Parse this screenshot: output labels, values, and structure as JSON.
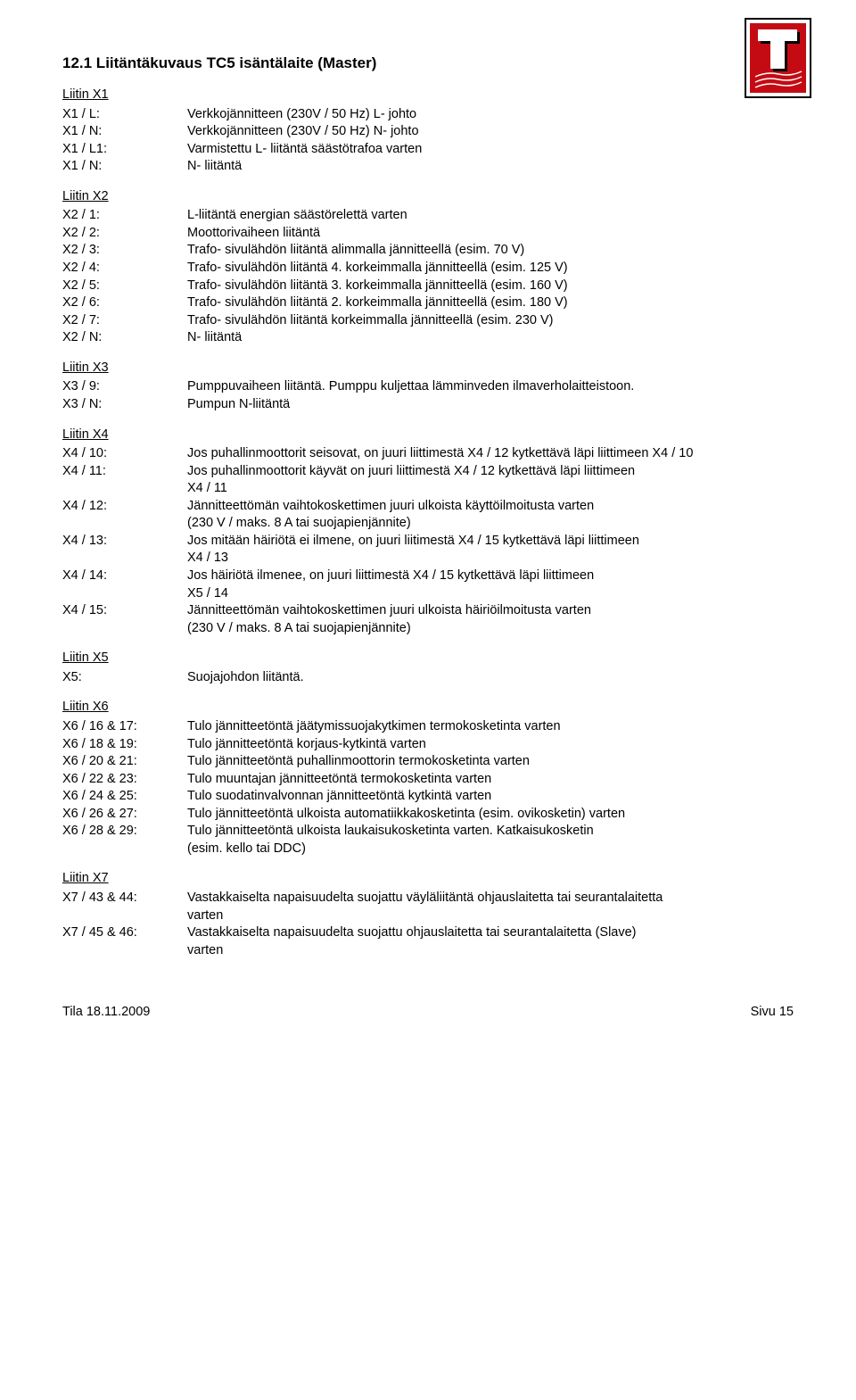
{
  "logo": {
    "outer_stroke": "#000000",
    "bg": "#c40b14",
    "letter": "#ffffff",
    "shadow": "#000000"
  },
  "heading": "12.1 Liitäntäkuvaus TC5 isäntälaite (Master)",
  "x1": {
    "title": "Liitin X1",
    "items": [
      {
        "k": "X1 / L:",
        "v": "Verkkojännitteen (230V / 50 Hz) L- johto"
      },
      {
        "k": "X1 / N:",
        "v": "Verkkojännitteen (230V / 50 Hz) N- johto"
      },
      {
        "k": "X1 / L1:",
        "v": "Varmistettu L- liitäntä säästötrafoa varten"
      },
      {
        "k": "X1 / N:",
        "v": "N- liitäntä"
      }
    ]
  },
  "x2": {
    "title": "Liitin X2",
    "items": [
      {
        "k": "X2 / 1:",
        "v": "L-liitäntä energian säästörelettä varten"
      },
      {
        "k": "X2 / 2:",
        "v": "Moottorivaiheen liitäntä"
      },
      {
        "k": "X2 / 3:",
        "v": "Trafo- sivulähdön liitäntä alimmalla jännitteellä (esim. 70 V)"
      },
      {
        "k": "X2 / 4:",
        "v": "Trafo- sivulähdön liitäntä 4. korkeimmalla jännitteellä (esim. 125 V)"
      },
      {
        "k": "X2 / 5:",
        "v": "Trafo- sivulähdön liitäntä 3. korkeimmalla jännitteellä (esim. 160 V)"
      },
      {
        "k": "X2 / 6:",
        "v": "Trafo- sivulähdön liitäntä 2. korkeimmalla jännitteellä (esim. 180 V)"
      },
      {
        "k": "X2 / 7:",
        "v": "Trafo- sivulähdön liitäntä korkeimmalla jännitteellä (esim. 230 V)"
      },
      {
        "k": "X2 / N:",
        "v": "N- liitäntä"
      }
    ]
  },
  "x3": {
    "title": "Liitin X3",
    "items": [
      {
        "k": "X3 / 9:",
        "v": "Pumppuvaiheen liitäntä. Pumppu kuljettaa lämminveden ilmaverholaitteistoon."
      },
      {
        "k": "X3 / N:",
        "v": "Pumpun N-liitäntä"
      }
    ]
  },
  "x4": {
    "title": "Liitin X4",
    "items": [
      {
        "k": "X4 / 10:",
        "v": "Jos puhallinmoottorit seisovat, on juuri liittimestä X4 / 12 kytkettävä läpi liittimeen X4 / 10"
      },
      {
        "k": "X4 / 11:",
        "v": "Jos puhallinmoottorit käyvät on juuri liittimestä X4 / 12 kytkettävä läpi liittimeen",
        "cont": " X4 / 11"
      },
      {
        "k": "X4 / 12:",
        "v": "Jännitteettömän vaihtokoskettimen juuri ulkoista käyttöilmoitusta varten",
        "cont": "(230 V / maks. 8 A tai suojapienjännite)"
      },
      {
        "k": "X4 / 13:",
        "v": "Jos mitään häiriötä ei ilmene, on juuri liitimestä X4 / 15 kytkettävä läpi liittimeen",
        "cont": "X4 / 13"
      },
      {
        "k": "X4 / 14:",
        "v": "Jos häiriötä ilmenee, on juuri liittimestä X4 / 15 kytkettävä läpi liittimeen",
        "cont": "X5 / 14"
      },
      {
        "k": "X4 / 15:",
        "v": "Jännitteettömän vaihtokoskettimen juuri ulkoista häiriöilmoitusta varten",
        "cont": "(230 V / maks. 8 A tai suojapienjännite)"
      }
    ]
  },
  "x5": {
    "title": "Liitin X5",
    "items": [
      {
        "k": "X5:",
        "v": "Suojajohdon liitäntä."
      }
    ]
  },
  "x6": {
    "title": "Liitin X6",
    "items": [
      {
        "k": "X6 / 16 & 17:",
        "v": "Tulo jännitteetöntä jäätymissuojakytkimen termokosketinta varten"
      },
      {
        "k": "X6 / 18 & 19:",
        "v": "Tulo jännitteetöntä korjaus-kytkintä varten"
      },
      {
        "k": "X6 / 20 & 21:",
        "v": "Tulo jännitteetöntä puhallinmoottorin termokosketinta varten"
      },
      {
        "k": "X6 / 22 & 23:",
        "v": "Tulo muuntajan jännitteetöntä termokosketinta varten"
      },
      {
        "k": "X6 / 24 & 25:",
        "v": "Tulo suodatinvalvonnan jännitteetöntä kytkintä varten"
      },
      {
        "k": "X6 / 26 & 27:",
        "v": "Tulo jännitteetöntä ulkoista automatiikkakosketinta (esim. ovikosketin) varten"
      },
      {
        "k": "X6 / 28 & 29:",
        "v": "Tulo jännitteetöntä ulkoista laukaisukosketinta varten. Katkaisukosketin",
        "cont": " (esim. kello tai DDC)"
      }
    ]
  },
  "x7": {
    "title": "Liitin X7",
    "items": [
      {
        "k": "X7 / 43 & 44:",
        "v": "Vastakkaiselta napaisuudelta suojattu väyläliitäntä ohjauslaitetta tai seurantalaitetta",
        "cont": "varten"
      },
      {
        "k": "X7 / 45 & 46:",
        "v": "Vastakkaiselta napaisuudelta suojattu ohjauslaitetta tai seurantalaitetta (Slave)",
        "cont": " varten"
      }
    ]
  },
  "footer": {
    "left": "Tila 18.11.2009",
    "right": "Sivu",
    "page": "15"
  }
}
